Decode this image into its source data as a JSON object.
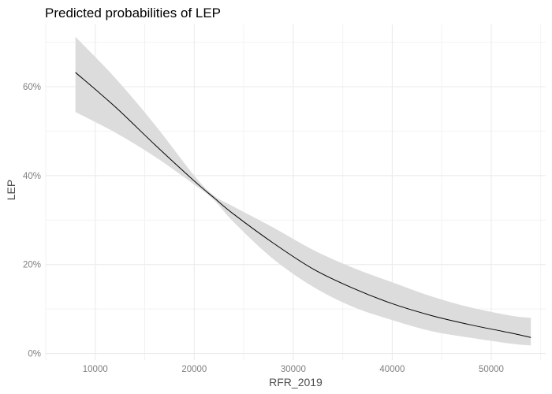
{
  "chart_data": {
    "type": "line",
    "title": "Predicted probabilities of LEP",
    "xlabel": "RFR_2019",
    "ylabel": "LEP",
    "xlim": [
      5000,
      55500
    ],
    "ylim": [
      -0.015,
      0.74
    ],
    "x_ticks": [
      10000,
      20000,
      30000,
      40000,
      50000
    ],
    "x_tick_labels": [
      "10000",
      "20000",
      "30000",
      "40000",
      "50000"
    ],
    "y_ticks": [
      0,
      0.2,
      0.4,
      0.6
    ],
    "y_tick_labels": [
      "0%",
      "20%",
      "40%",
      "60%"
    ],
    "grid": true,
    "series": [
      {
        "x": [
          8000,
          12000,
          16000,
          20000,
          22000,
          24000,
          28000,
          32000,
          36000,
          40000,
          44000,
          48000,
          52000,
          54000
        ],
        "y": [
          0.632,
          0.555,
          0.47,
          0.388,
          0.35,
          0.313,
          0.248,
          0.19,
          0.147,
          0.112,
          0.085,
          0.064,
          0.046,
          0.036
        ],
        "lower": [
          0.543,
          0.497,
          0.443,
          0.38,
          0.345,
          0.295,
          0.212,
          0.15,
          0.105,
          0.075,
          0.05,
          0.035,
          0.022,
          0.018
        ],
        "upper": [
          0.712,
          0.62,
          0.515,
          0.4,
          0.355,
          0.33,
          0.283,
          0.233,
          0.193,
          0.16,
          0.128,
          0.103,
          0.085,
          0.08
        ]
      }
    ],
    "colors": {
      "line": "#000000",
      "ribbon": "#dcdcdc",
      "grid_major": "#ebebeb",
      "grid_minor": "#f2f2f2"
    }
  }
}
